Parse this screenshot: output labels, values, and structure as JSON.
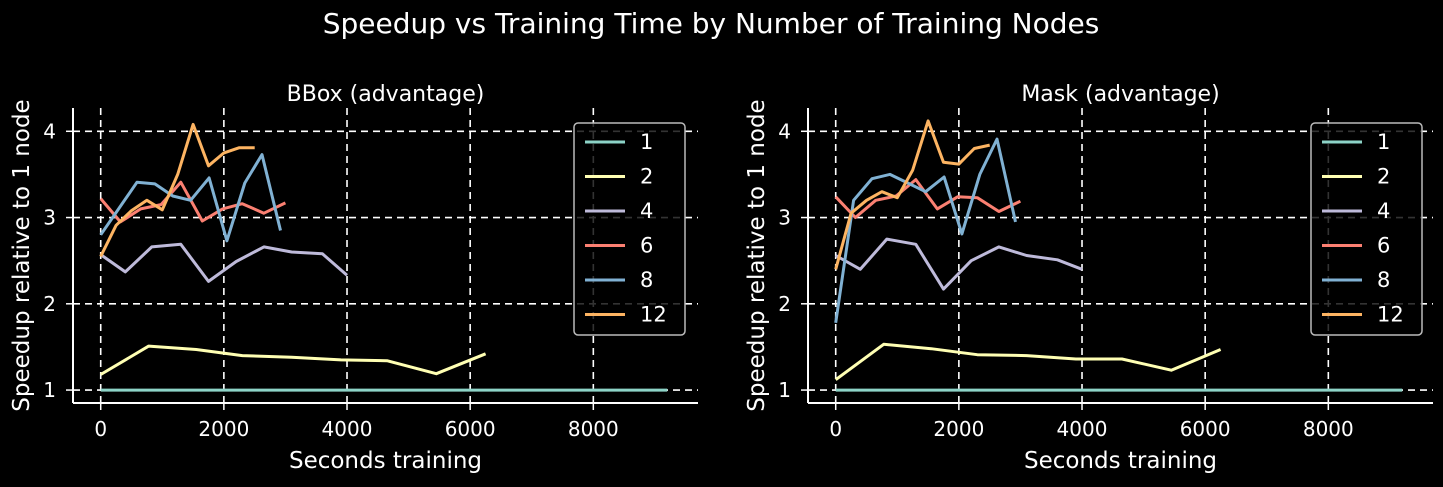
{
  "figure": {
    "title": "Speedup vs Training Time by Number of Training Nodes"
  },
  "colors": {
    "1": "#8dd3c7",
    "2": "#ffffb3",
    "4": "#bebada",
    "6": "#fb8072",
    "8": "#80b1d3",
    "12": "#fdb462",
    "background": "#000000",
    "grid": "#ffffff"
  },
  "chart_data": [
    {
      "type": "line",
      "title": "BBox (advantage)",
      "xlabel": "Seconds training",
      "ylabel": "Speedup relative to 1 node",
      "xlim": [
        -450,
        9700
      ],
      "ylim": [
        0.85,
        4.27
      ],
      "xticks": [
        0,
        2000,
        4000,
        6000,
        8000
      ],
      "yticks": [
        1,
        2,
        3,
        4
      ],
      "grid": true,
      "legend": "top-right",
      "series": [
        {
          "name": "1",
          "x": [
            0,
            9200
          ],
          "y": [
            1.0,
            1.0
          ]
        },
        {
          "name": "2",
          "x": [
            0,
            780,
            1550,
            2300,
            3100,
            3900,
            4650,
            5450,
            6250
          ],
          "y": [
            1.18,
            1.51,
            1.47,
            1.4,
            1.38,
            1.35,
            1.34,
            1.19,
            1.42
          ]
        },
        {
          "name": "4",
          "x": [
            0,
            400,
            830,
            1300,
            1750,
            2200,
            2650,
            3100,
            3600,
            4000
          ],
          "y": [
            2.57,
            2.37,
            2.66,
            2.69,
            2.26,
            2.49,
            2.66,
            2.6,
            2.58,
            2.33
          ]
        },
        {
          "name": "6",
          "x": [
            0,
            320,
            650,
            980,
            1300,
            1650,
            1980,
            2300,
            2650,
            3000
          ],
          "y": [
            3.22,
            2.95,
            3.1,
            3.15,
            3.41,
            2.96,
            3.1,
            3.16,
            3.05,
            3.17
          ]
        },
        {
          "name": "8",
          "x": [
            0,
            290,
            590,
            880,
            1170,
            1460,
            1760,
            2050,
            2340,
            2620,
            2920
          ],
          "y": [
            2.8,
            3.1,
            3.41,
            3.39,
            3.25,
            3.2,
            3.46,
            2.73,
            3.4,
            3.73,
            2.85
          ]
        },
        {
          "name": "12",
          "x": [
            0,
            250,
            500,
            750,
            1000,
            1250,
            1500,
            1750,
            2000,
            2250,
            2500
          ],
          "y": [
            2.55,
            2.91,
            3.08,
            3.2,
            3.09,
            3.5,
            4.08,
            3.6,
            3.75,
            3.81,
            3.81
          ]
        }
      ]
    },
    {
      "type": "line",
      "title": "Mask (advantage)",
      "xlabel": "Seconds training",
      "ylabel": "Speedup relative to 1 node",
      "xlim": [
        -450,
        9700
      ],
      "ylim": [
        0.85,
        4.27
      ],
      "xticks": [
        0,
        2000,
        4000,
        6000,
        8000
      ],
      "yticks": [
        1,
        2,
        3,
        4
      ],
      "grid": true,
      "legend": "top-right",
      "series": [
        {
          "name": "1",
          "x": [
            0,
            9200
          ],
          "y": [
            1.0,
            1.0
          ]
        },
        {
          "name": "2",
          "x": [
            0,
            780,
            1550,
            2300,
            3100,
            3900,
            4650,
            5450,
            6250
          ],
          "y": [
            1.12,
            1.53,
            1.48,
            1.41,
            1.4,
            1.36,
            1.36,
            1.23,
            1.47
          ]
        },
        {
          "name": "4",
          "x": [
            0,
            400,
            830,
            1300,
            1750,
            2200,
            2650,
            3100,
            3600,
            4000
          ],
          "y": [
            2.56,
            2.4,
            2.75,
            2.69,
            2.17,
            2.5,
            2.66,
            2.56,
            2.51,
            2.4
          ]
        },
        {
          "name": "6",
          "x": [
            0,
            320,
            650,
            980,
            1300,
            1650,
            1980,
            2300,
            2650,
            3000
          ],
          "y": [
            3.24,
            3.0,
            3.2,
            3.25,
            3.44,
            3.1,
            3.24,
            3.23,
            3.07,
            3.19
          ]
        },
        {
          "name": "8",
          "x": [
            0,
            290,
            590,
            880,
            1170,
            1460,
            1760,
            2050,
            2340,
            2620,
            2920
          ],
          "y": [
            1.78,
            3.2,
            3.45,
            3.5,
            3.4,
            3.3,
            3.47,
            2.81,
            3.5,
            3.91,
            2.95
          ]
        },
        {
          "name": "12",
          "x": [
            0,
            250,
            500,
            750,
            1000,
            1250,
            1500,
            1750,
            2000,
            2250,
            2500
          ],
          "y": [
            2.4,
            3.05,
            3.2,
            3.3,
            3.23,
            3.55,
            4.12,
            3.64,
            3.62,
            3.8,
            3.84
          ]
        }
      ]
    }
  ]
}
